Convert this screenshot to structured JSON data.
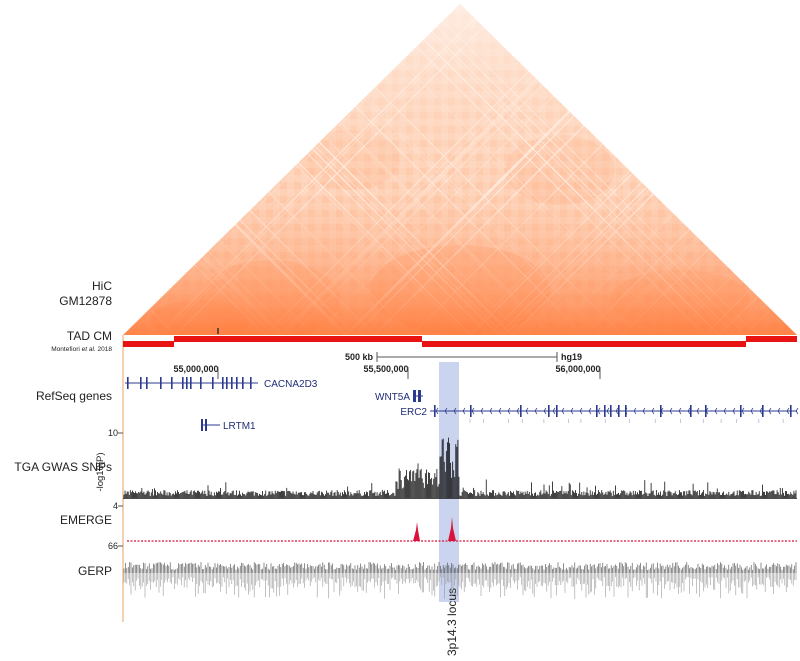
{
  "tracks": {
    "hic_line1": "HiC",
    "hic_line2": "GM12878",
    "tad": "TAD CM",
    "tad_citation_pre": "Montefiori ",
    "tad_citation_it": "et al.",
    "tad_citation_post": " 2018",
    "refseq": "RefSeq genes",
    "gwas": "TGA GWAS SNPs",
    "emerge": "EMERGE",
    "gerp": "GERP"
  },
  "axis": {
    "y_label": "-log10(P)",
    "y_top": "10",
    "y_bottom": "4",
    "emerge_tick": "66"
  },
  "ruler": {
    "scale": "500 kb",
    "assembly": "hg19",
    "coords": [
      "55,000,000",
      "55,500,000",
      "56,000,000"
    ]
  },
  "genes": {
    "cacna2d3": "CACNA2D3",
    "lrtm1": "LRTM1",
    "wnt5a": "WNT5A",
    "erc2": "ERC2"
  },
  "highlight": {
    "label": "3p14.3 locus"
  },
  "colors": {
    "hic": "#ff8a55",
    "tad": "#e81414",
    "gene": "#2b3a8f",
    "emerge": "#d8143c",
    "highlight": "#b8c6ea",
    "axis": "#e8a35c"
  }
}
